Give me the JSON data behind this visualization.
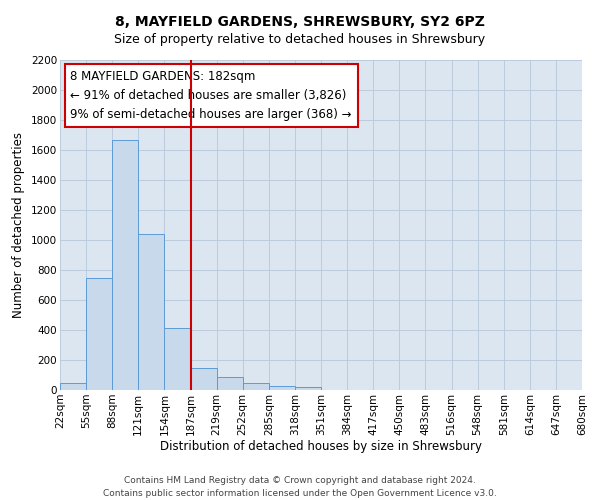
{
  "title": "8, MAYFIELD GARDENS, SHREWSBURY, SY2 6PZ",
  "subtitle": "Size of property relative to detached houses in Shrewsbury",
  "xlabel": "Distribution of detached houses by size in Shrewsbury",
  "ylabel": "Number of detached properties",
  "bin_labels": [
    "22sqm",
    "55sqm",
    "88sqm",
    "121sqm",
    "154sqm",
    "187sqm",
    "219sqm",
    "252sqm",
    "285sqm",
    "318sqm",
    "351sqm",
    "384sqm",
    "417sqm",
    "450sqm",
    "483sqm",
    "516sqm",
    "548sqm",
    "581sqm",
    "614sqm",
    "647sqm",
    "680sqm"
  ],
  "bar_heights": [
    50,
    750,
    1670,
    1040,
    415,
    150,
    85,
    45,
    30,
    20,
    0,
    0,
    0,
    0,
    0,
    0,
    0,
    0,
    0,
    0
  ],
  "bar_color": "#c9d9ec",
  "bar_edge_color": "#5b9bd5",
  "vline_x": 5.0,
  "vline_color": "#cc0000",
  "ylim": [
    0,
    2200
  ],
  "yticks": [
    0,
    200,
    400,
    600,
    800,
    1000,
    1200,
    1400,
    1600,
    1800,
    2000,
    2200
  ],
  "annotation_line1": "8 MAYFIELD GARDENS: 182sqm",
  "annotation_line2": "← 91% of detached houses are smaller (3,826)",
  "annotation_line3": "9% of semi-detached houses are larger (368) →",
  "footer_line1": "Contains HM Land Registry data © Crown copyright and database right 2024.",
  "footer_line2": "Contains public sector information licensed under the Open Government Licence v3.0.",
  "plot_bg_color": "#dce6f1",
  "grid_color": "#c0cfe0",
  "title_fontsize": 10,
  "subtitle_fontsize": 9,
  "axis_label_fontsize": 8.5,
  "tick_fontsize": 7.5,
  "annotation_fontsize": 8.5,
  "footer_fontsize": 6.5
}
